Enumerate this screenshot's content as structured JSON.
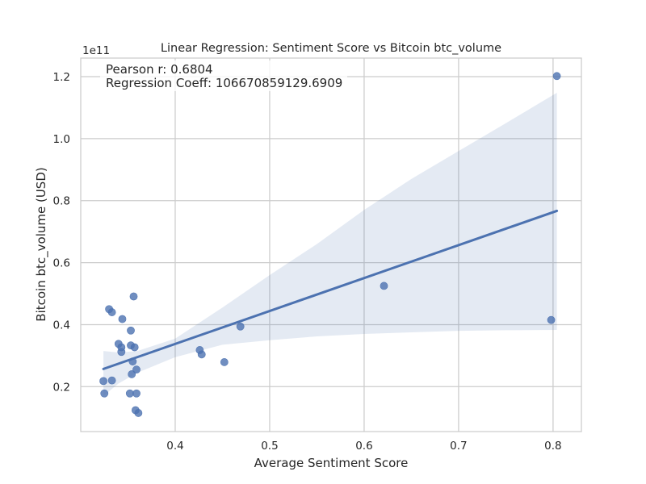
{
  "chart_data": {
    "type": "scatter",
    "title": "Linear Regression: Sentiment Score vs Bitcoin btc_volume",
    "xlabel": "Average Sentiment Score",
    "ylabel": "Bitcoin btc_volume (USD)",
    "y_offset_label": "1e11",
    "annotation": {
      "line1": "Pearson r: 0.6804",
      "line2": "Regression Coeff: 106670859129.6909"
    },
    "xlim": [
      0.3,
      0.83
    ],
    "ylim": [
      0.055,
      1.26
    ],
    "grid": true,
    "x_ticks": [
      0.4,
      0.5,
      0.6,
      0.7,
      0.8
    ],
    "x_tick_labels": [
      "0.4",
      "0.5",
      "0.6",
      "0.7",
      "0.8"
    ],
    "y_ticks": [
      0.2,
      0.4,
      0.6,
      0.8,
      1.0,
      1.2
    ],
    "y_tick_labels": [
      "0.2",
      "0.4",
      "0.6",
      "0.8",
      "1.0",
      "1.2"
    ],
    "points": [
      {
        "x": 0.324,
        "y": 0.218
      },
      {
        "x": 0.325,
        "y": 0.178
      },
      {
        "x": 0.33,
        "y": 0.45
      },
      {
        "x": 0.333,
        "y": 0.22
      },
      {
        "x": 0.333,
        "y": 0.44
      },
      {
        "x": 0.34,
        "y": 0.338
      },
      {
        "x": 0.343,
        "y": 0.312
      },
      {
        "x": 0.343,
        "y": 0.327
      },
      {
        "x": 0.344,
        "y": 0.418
      },
      {
        "x": 0.352,
        "y": 0.178
      },
      {
        "x": 0.353,
        "y": 0.381
      },
      {
        "x": 0.353,
        "y": 0.333
      },
      {
        "x": 0.354,
        "y": 0.24
      },
      {
        "x": 0.355,
        "y": 0.281
      },
      {
        "x": 0.356,
        "y": 0.491
      },
      {
        "x": 0.357,
        "y": 0.327
      },
      {
        "x": 0.358,
        "y": 0.124
      },
      {
        "x": 0.359,
        "y": 0.178
      },
      {
        "x": 0.359,
        "y": 0.255
      },
      {
        "x": 0.361,
        "y": 0.115
      },
      {
        "x": 0.426,
        "y": 0.318
      },
      {
        "x": 0.428,
        "y": 0.304
      },
      {
        "x": 0.452,
        "y": 0.279
      },
      {
        "x": 0.469,
        "y": 0.394
      },
      {
        "x": 0.621,
        "y": 0.525
      },
      {
        "x": 0.798,
        "y": 0.415
      },
      {
        "x": 0.804,
        "y": 1.202
      }
    ],
    "regression_line": {
      "x": [
        0.324,
        0.804
      ],
      "y": [
        0.257,
        0.767
      ]
    },
    "confidence_band": {
      "x": [
        0.324,
        0.34,
        0.36,
        0.4,
        0.45,
        0.5,
        0.55,
        0.6,
        0.65,
        0.7,
        0.75,
        0.804
      ],
      "upper": [
        0.315,
        0.31,
        0.315,
        0.355,
        0.455,
        0.56,
        0.66,
        0.77,
        0.87,
        0.96,
        1.05,
        1.148
      ],
      "lower": [
        0.17,
        0.21,
        0.245,
        0.295,
        0.335,
        0.35,
        0.362,
        0.37,
        0.375,
        0.38,
        0.382,
        0.383
      ]
    },
    "colors": {
      "point": "#4C72B0",
      "line": "#4C72B0",
      "band": "#4C72B0",
      "grid": "#cccccc",
      "axes_edge": "#cccccc"
    }
  }
}
